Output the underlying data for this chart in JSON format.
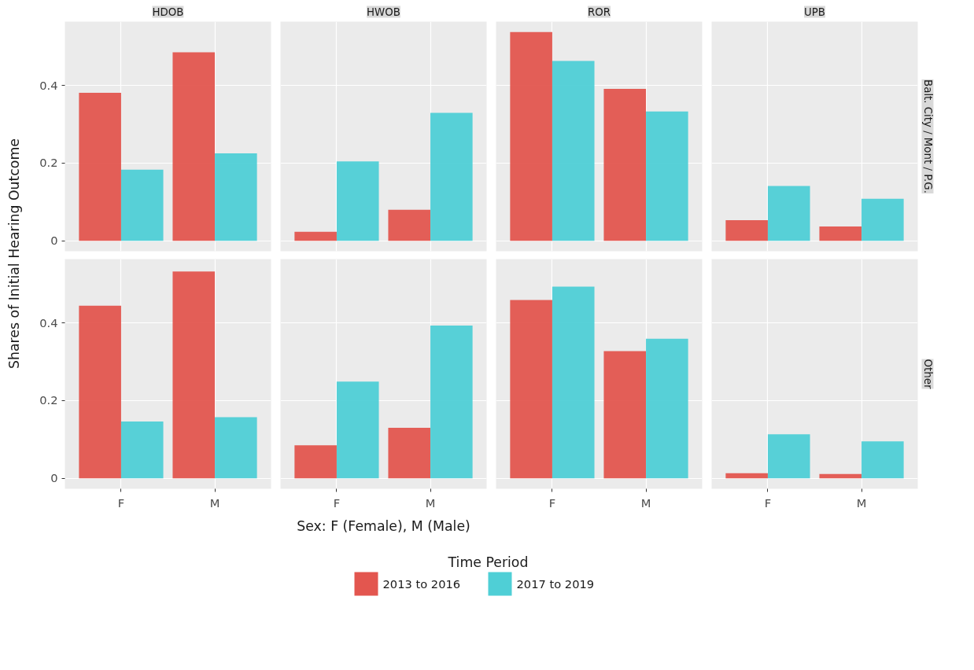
{
  "chart_data": [
    {
      "type": "bar",
      "title": "HDOB",
      "ylabel": "Shares of Initial Hearing Outcome",
      "legend_title": "Time Period",
      "legend": "bottom",
      "categories": [
        "F",
        "M"
      ],
      "ylim": [
        -0.027,
        0.564
      ],
      "yticks": [
        0,
        0.2,
        0.4
      ],
      "grid": true,
      "tick_labels": "y",
      "series": [
        {
          "name": "2013 to 2016",
          "color": "#e3564f",
          "values": [
            0.381,
            0.485
          ]
        },
        {
          "name": "2017 to 2019",
          "color": "#4fcfd6",
          "values": [
            0.183,
            0.225
          ]
        }
      ]
    },
    {
      "type": "bar",
      "title": "HWOB",
      "categories": [
        "F",
        "M"
      ],
      "ylim": [
        -0.027,
        0.564
      ],
      "yticks": [
        0,
        0.2,
        0.4
      ],
      "grid": true,
      "tick_labels": false,
      "series": [
        {
          "name": "2013 to 2016",
          "color": "#e3564f",
          "values": [
            0.023,
            0.08
          ]
        },
        {
          "name": "2017 to 2019",
          "color": "#4fcfd6",
          "values": [
            0.204,
            0.329
          ]
        }
      ]
    },
    {
      "type": "bar",
      "title": "ROR",
      "categories": [
        "F",
        "M"
      ],
      "ylim": [
        -0.027,
        0.564
      ],
      "yticks": [
        0,
        0.2,
        0.4
      ],
      "grid": true,
      "tick_labels": false,
      "series": [
        {
          "name": "2013 to 2016",
          "color": "#e3564f",
          "values": [
            0.537,
            0.391
          ]
        },
        {
          "name": "2017 to 2019",
          "color": "#4fcfd6",
          "values": [
            0.463,
            0.333
          ]
        }
      ]
    },
    {
      "type": "bar",
      "title": "UPB",
      "annotations": [
        "Balt. City / Mont / P.G."
      ],
      "categories": [
        "F",
        "M"
      ],
      "ylim": [
        -0.027,
        0.564
      ],
      "yticks": [
        0,
        0.2,
        0.4
      ],
      "grid": true,
      "tick_labels": false,
      "series": [
        {
          "name": "2013 to 2016",
          "color": "#e3564f",
          "values": [
            0.053,
            0.037
          ]
        },
        {
          "name": "2017 to 2019",
          "color": "#4fcfd6",
          "values": [
            0.141,
            0.108
          ]
        }
      ]
    },
    {
      "type": "bar",
      "categories": [
        "F",
        "M"
      ],
      "ylim": [
        -0.027,
        0.564
      ],
      "yticks": [
        0,
        0.2,
        0.4
      ],
      "grid": true,
      "series": [
        {
          "name": "2013 to 2016",
          "color": "#e3564f",
          "values": [
            0.444,
            0.532
          ]
        },
        {
          "name": "2017 to 2019",
          "color": "#4fcfd6",
          "values": [
            0.146,
            0.157
          ]
        }
      ]
    },
    {
      "type": "bar",
      "xlabel": "Sex: F (Female), M (Male)",
      "categories": [
        "F",
        "M"
      ],
      "ylim": [
        -0.027,
        0.564
      ],
      "yticks": [
        0,
        0.2,
        0.4
      ],
      "grid": true,
      "tick_labels": "x",
      "series": [
        {
          "name": "2013 to 2016",
          "color": "#e3564f",
          "values": [
            0.085,
            0.13
          ]
        },
        {
          "name": "2017 to 2019",
          "color": "#4fcfd6",
          "values": [
            0.249,
            0.393
          ]
        }
      ]
    },
    {
      "type": "bar",
      "categories": [
        "F",
        "M"
      ],
      "ylim": [
        -0.027,
        0.564
      ],
      "yticks": [
        0,
        0.2,
        0.4
      ],
      "grid": true,
      "tick_labels": "x",
      "series": [
        {
          "name": "2013 to 2016",
          "color": "#e3564f",
          "values": [
            0.459,
            0.327
          ]
        },
        {
          "name": "2017 to 2019",
          "color": "#4fcfd6",
          "values": [
            0.493,
            0.359
          ]
        }
      ]
    },
    {
      "type": "bar",
      "annotations": [
        "Other"
      ],
      "categories": [
        "F",
        "M"
      ],
      "ylim": [
        -0.027,
        0.564
      ],
      "yticks": [
        0,
        0.2,
        0.4
      ],
      "grid": true,
      "tick_labels": "x",
      "series": [
        {
          "name": "2013 to 2016",
          "color": "#e3564f",
          "values": [
            0.013,
            0.011
          ]
        },
        {
          "name": "2017 to 2019",
          "color": "#4fcfd6",
          "values": [
            0.113,
            0.095
          ]
        }
      ]
    }
  ]
}
